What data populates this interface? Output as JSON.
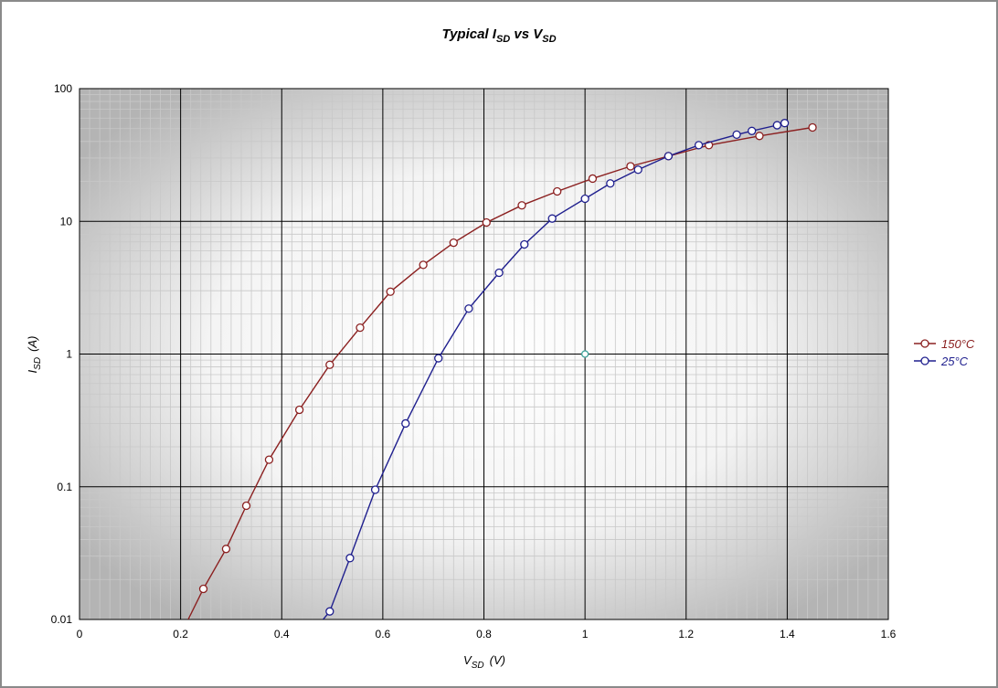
{
  "chart_data": {
    "type": "line",
    "title": "Typical I",
    "title_sub1": "SD",
    "title_mid": " vs V",
    "title_sub2": "SD",
    "xlabel": "V",
    "xlabel_sub": "SD",
    "xlabel_unit": "(V)",
    "ylabel": "I",
    "ylabel_sub": "SD",
    "ylabel_unit": "(A)",
    "xlim": [
      0,
      1.6
    ],
    "ylim": [
      0.01,
      100
    ],
    "yscale": "log",
    "grid": true,
    "legend_position": "right",
    "x_ticks": [
      "0",
      "0.2",
      "0.4",
      "0.6",
      "0.8",
      "1",
      "1.2",
      "1.4",
      "1.6"
    ],
    "x_tick_values": [
      0,
      0.2,
      0.4,
      0.6,
      0.8,
      1.0,
      1.2,
      1.4,
      1.6
    ],
    "y_ticks": [
      "0.01",
      "0.1",
      "1",
      "10",
      "100"
    ],
    "y_tick_values": [
      0.01,
      0.1,
      1,
      10,
      100
    ],
    "series": [
      {
        "name": "150°C",
        "color": "#8b2020",
        "x": [
          0.215,
          0.245,
          0.29,
          0.33,
          0.375,
          0.435,
          0.495,
          0.555,
          0.615,
          0.68,
          0.74,
          0.805,
          0.875,
          0.945,
          1.015,
          1.09,
          1.165,
          1.245,
          1.345,
          1.45
        ],
        "y": [
          0.01,
          0.017,
          0.034,
          0.072,
          0.16,
          0.38,
          0.83,
          1.58,
          2.95,
          4.7,
          6.9,
          9.8,
          13.2,
          16.8,
          21.0,
          26.0,
          31.0,
          37.5,
          44.0,
          51.0
        ],
        "markers": [
          false,
          true,
          true,
          true,
          true,
          true,
          true,
          true,
          true,
          true,
          true,
          true,
          true,
          true,
          true,
          true,
          true,
          true,
          true,
          true
        ]
      },
      {
        "name": "25°C",
        "color": "#1f1f8e",
        "x": [
          0.482,
          0.495,
          0.535,
          0.585,
          0.645,
          0.71,
          0.77,
          0.83,
          0.88,
          0.935,
          1.0,
          1.05,
          1.105,
          1.165,
          1.225,
          1.3,
          1.33,
          1.38,
          1.395
        ],
        "y": [
          0.01,
          0.0115,
          0.029,
          0.095,
          0.3,
          0.93,
          2.2,
          4.1,
          6.7,
          10.5,
          14.8,
          19.3,
          24.5,
          31.0,
          37.5,
          45.0,
          48.0,
          53.0,
          55.0
        ],
        "markers": [
          false,
          true,
          true,
          true,
          true,
          true,
          true,
          true,
          true,
          true,
          true,
          true,
          true,
          true,
          true,
          true,
          true,
          true,
          true
        ]
      }
    ],
    "annotations": [
      {
        "x": 1.0,
        "y": 1.0,
        "color": "#3aa39a"
      }
    ]
  }
}
